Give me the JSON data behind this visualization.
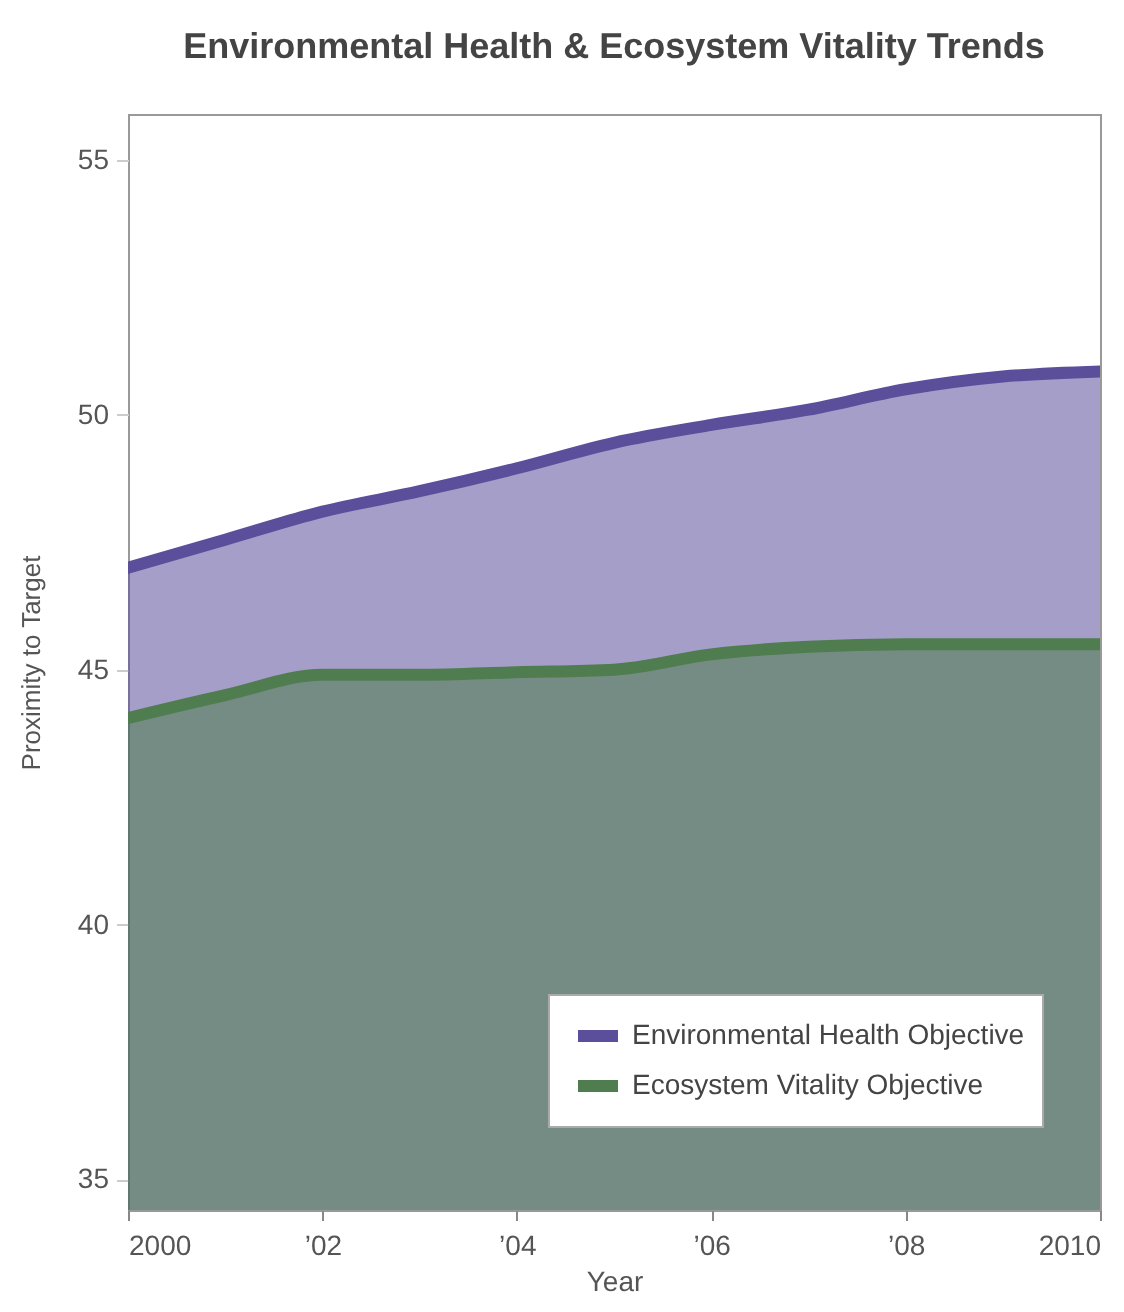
{
  "chart_data": {
    "type": "area",
    "title": "Environmental Health & Ecosystem Vitality Trends",
    "xlabel": "Year",
    "ylabel": "Proximity to Target",
    "x": [
      2000,
      2001,
      2002,
      2003,
      2004,
      2005,
      2006,
      2007,
      2008,
      2009,
      2010
    ],
    "series": [
      {
        "name": "Environmental Health Objective",
        "color": "#5b4e9a",
        "values": [
          47.0,
          47.55,
          48.1,
          48.5,
          48.95,
          49.45,
          49.8,
          50.1,
          50.5,
          50.75,
          50.85
        ]
      },
      {
        "name": "Ecosystem Vitality Objective",
        "color": "#4f7d4f",
        "values": [
          44.05,
          44.5,
          44.9,
          44.9,
          44.95,
          45.0,
          45.3,
          45.45,
          45.5,
          45.5,
          45.5
        ]
      }
    ],
    "xlim": [
      2000,
      2010
    ],
    "xticks": [
      2000,
      {
        "value": 2002,
        "label": "’02"
      },
      {
        "value": 2004,
        "label": "’04"
      },
      {
        "value": 2006,
        "label": "’06"
      },
      {
        "value": 2008,
        "label": "’08"
      },
      2010
    ],
    "ylim": [
      34.4,
      55.9
    ],
    "yticks": [
      35,
      40,
      45,
      50,
      55
    ],
    "legend": "bottom right"
  }
}
